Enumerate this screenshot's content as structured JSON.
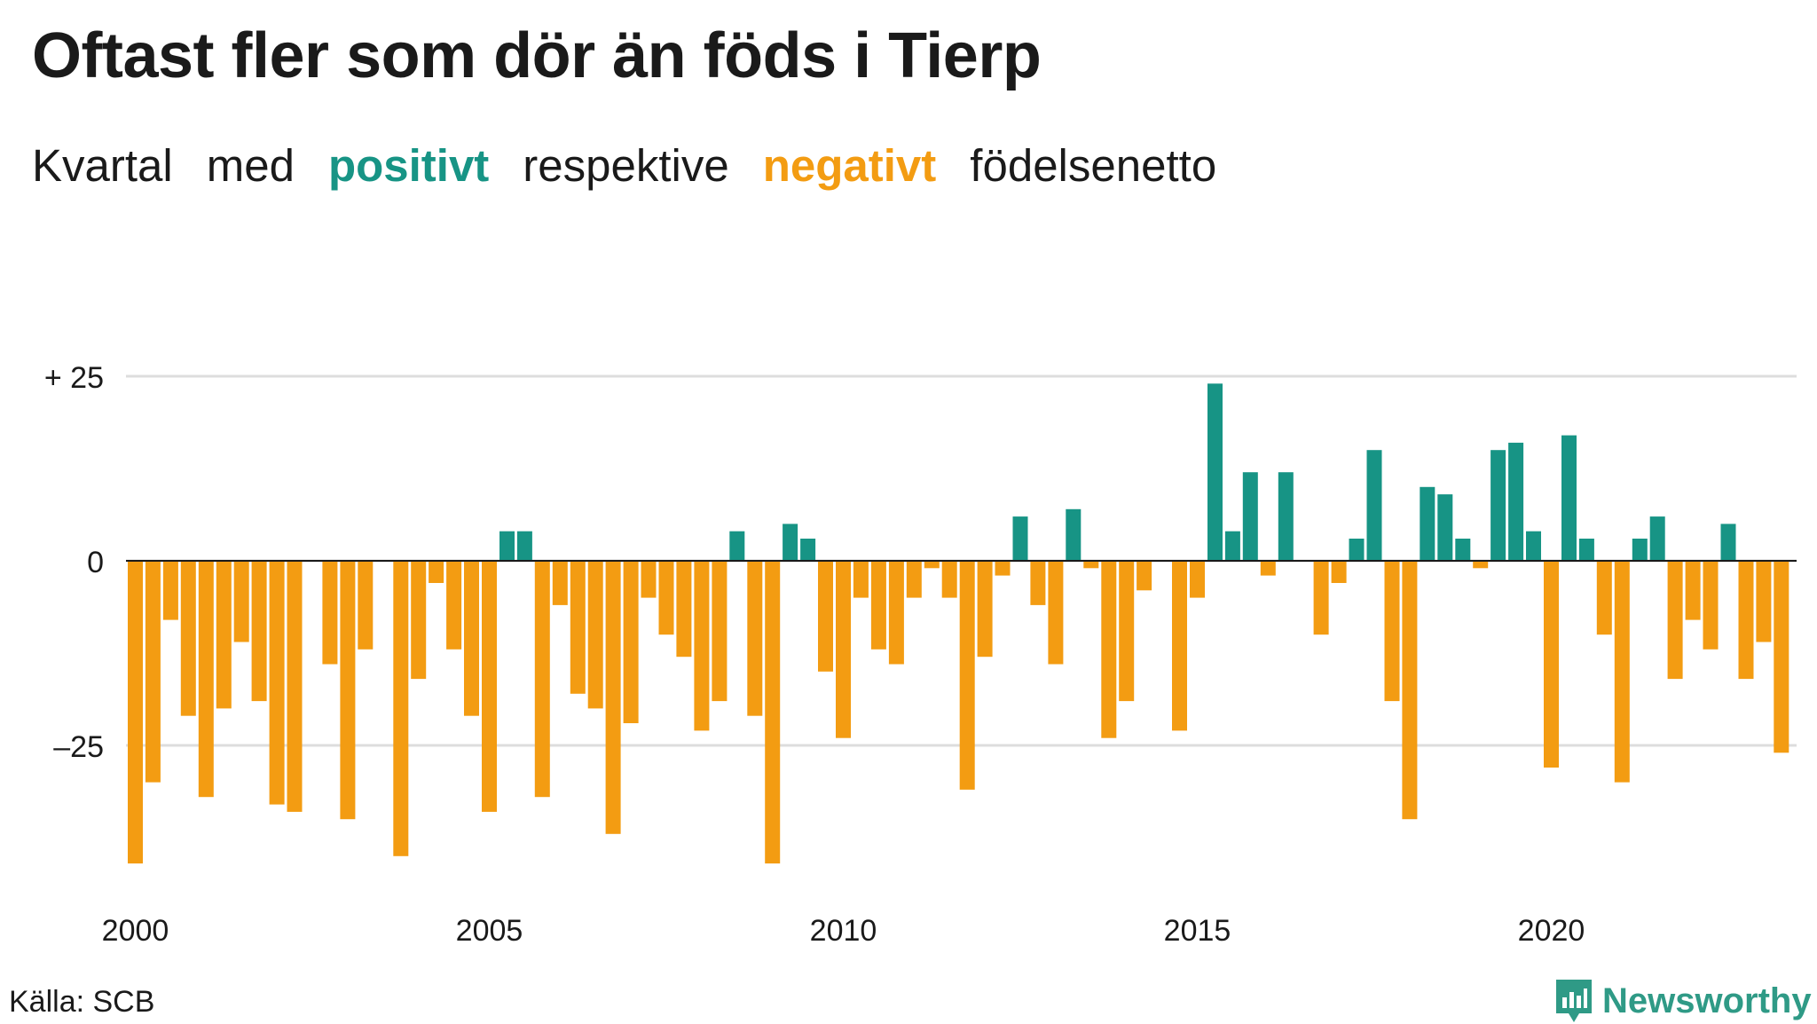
{
  "title": "Oftast fler som dör än föds i Tierp",
  "subtitle": {
    "part1": "Kvartal",
    "part2": "med",
    "positive_word": "positivt",
    "part3": "respektive",
    "negative_word": "negativt",
    "part4": "födelsenetto"
  },
  "source": "Källa: SCB",
  "brand": "Newsworthy",
  "colors": {
    "positive": "#179485",
    "negative": "#f39c12",
    "grid": "#dddddd",
    "text": "#1a1a1a"
  },
  "chart_data": {
    "type": "bar",
    "x_start": 2000,
    "x_ticks": [
      "2000",
      "2005",
      "2010",
      "2015",
      "2020"
    ],
    "y_ticks": [
      {
        "value": 25,
        "label": "+ 25"
      },
      {
        "value": 0,
        "label": "0"
      },
      {
        "value": -25,
        "label": "–25"
      }
    ],
    "ylim": [
      -42,
      27
    ],
    "grid": true,
    "values": [
      -41,
      -30,
      -8,
      -21,
      -32,
      -20,
      -11,
      -19,
      -33,
      -34,
      null,
      -14,
      -35,
      -12,
      null,
      -40,
      -16,
      -3,
      -12,
      -21,
      -34,
      4,
      4,
      -32,
      -6,
      -18,
      -20,
      -37,
      -22,
      -5,
      -10,
      -13,
      -23,
      -19,
      4,
      -21,
      -41,
      5,
      3,
      -15,
      -24,
      -5,
      -12,
      -14,
      -5,
      -1,
      -5,
      -31,
      -13,
      -2,
      6,
      -6,
      -14,
      7,
      -1,
      -24,
      -19,
      -4,
      null,
      -23,
      -5,
      24,
      4,
      12,
      -2,
      12,
      null,
      -10,
      -3,
      3,
      15,
      -19,
      -35,
      10,
      9,
      3,
      -1,
      15,
      16,
      4,
      -28,
      17,
      3,
      -10,
      -30,
      3,
      6,
      -16,
      -8,
      -12,
      5,
      -16,
      -11,
      -26
    ]
  }
}
